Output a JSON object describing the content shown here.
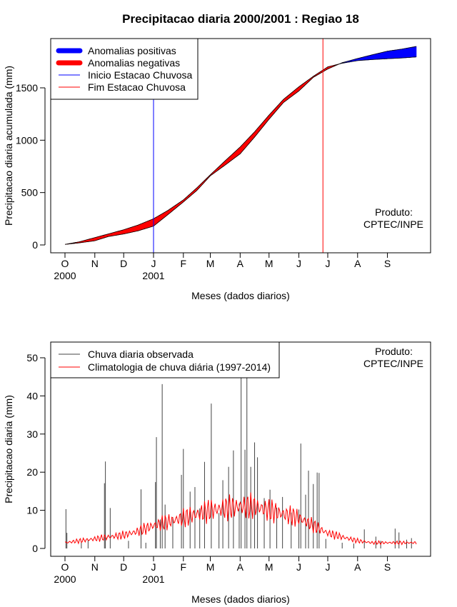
{
  "chart_data": [
    {
      "type": "area",
      "title": "Precipitacao diaria 2000/2001 : Regiao 18",
      "xlabel": "Meses (dados diarios)",
      "ylabel": "Precipitacao diaria acumulada (mm)",
      "ylim": [
        0,
        1900
      ],
      "yticks": [
        0,
        500,
        1000,
        1500
      ],
      "xlim_days": [
        0,
        365
      ],
      "month_ticks": [
        {
          "label": "O",
          "day": 0,
          "year": "2000"
        },
        {
          "label": "N",
          "day": 31,
          "year": ""
        },
        {
          "label": "D",
          "day": 61,
          "year": ""
        },
        {
          "label": "J",
          "day": 92,
          "year": "2001"
        },
        {
          "label": "F",
          "day": 123,
          "year": ""
        },
        {
          "label": "M",
          "day": 151,
          "year": ""
        },
        {
          "label": "A",
          "day": 182,
          "year": ""
        },
        {
          "label": "M",
          "day": 212,
          "year": ""
        },
        {
          "label": "J",
          "day": 243,
          "year": ""
        },
        {
          "label": "J",
          "day": 273,
          "year": ""
        },
        {
          "label": "A",
          "day": 304,
          "year": ""
        },
        {
          "label": "S",
          "day": 335,
          "year": ""
        }
      ],
      "legend": [
        {
          "label": "Anomalias positivas",
          "color": "#0000ff",
          "style": "thick"
        },
        {
          "label": "Anomalias negativas",
          "color": "#ff0000",
          "style": "thick"
        },
        {
          "label": "Inicio Estacao Chuvosa",
          "color": "#0000ff",
          "style": "thin"
        },
        {
          "label": "Fim Estacao Chuvosa",
          "color": "#ff0000",
          "style": "thin"
        }
      ],
      "rainy_season_start_day": 92,
      "rainy_season_end_day": 268,
      "product_label": [
        "Produto:",
        "CPTEC/INPE"
      ],
      "days": [
        0,
        15,
        31,
        45,
        61,
        76,
        92,
        107,
        123,
        137,
        151,
        166,
        182,
        197,
        212,
        227,
        243,
        258,
        273,
        288,
        304,
        319,
        335,
        350,
        365
      ],
      "climatology": [
        5,
        30,
        70,
        105,
        145,
        190,
        250,
        330,
        430,
        545,
        670,
        800,
        935,
        1080,
        1240,
        1390,
        1510,
        1610,
        1700,
        1735,
        1760,
        1770,
        1778,
        1785,
        1795
      ],
      "observed": [
        5,
        20,
        40,
        80,
        105,
        135,
        180,
        290,
        410,
        520,
        660,
        760,
        870,
        1030,
        1200,
        1360,
        1470,
        1600,
        1680,
        1740,
        1780,
        1815,
        1850,
        1870,
        1895
      ]
    },
    {
      "type": "bar",
      "xlabel": "Meses (dados diarios)",
      "ylabel": "Precipitacao diaria (mm)",
      "ylim": [
        0,
        50
      ],
      "yticks": [
        0,
        10,
        20,
        30,
        40,
        50
      ],
      "legend": [
        {
          "label": "Chuva diaria observada",
          "color": "#444444"
        },
        {
          "label": "Climatologia de chuva diária (1997-2014)",
          "color": "#ff0000"
        }
      ],
      "product_label": [
        "Produto:",
        "CPTEC/INPE"
      ],
      "clim_days": [
        0,
        15,
        31,
        45,
        61,
        76,
        92,
        107,
        123,
        137,
        151,
        166,
        182,
        197,
        212,
        227,
        243,
        258,
        273,
        288,
        304,
        319,
        335,
        350,
        365
      ],
      "clim_values": [
        1.5,
        2,
        2.5,
        3,
        3.5,
        4.5,
        6,
        7,
        8,
        9,
        10,
        10.5,
        11,
        11,
        10,
        9,
        8,
        6,
        4,
        3,
        2,
        1.5,
        1.5,
        1.5,
        1.5
      ],
      "observed_peaks": [
        {
          "day": 1,
          "value": 10.3
        },
        {
          "day": 2,
          "value": 4.1
        },
        {
          "day": 17,
          "value": 1.5
        },
        {
          "day": 24,
          "value": 2.2
        },
        {
          "day": 41,
          "value": 17.1
        },
        {
          "day": 42,
          "value": 22.8
        },
        {
          "day": 47,
          "value": 10.6
        },
        {
          "day": 66,
          "value": 2.0
        },
        {
          "day": 79,
          "value": 15.5
        },
        {
          "day": 84,
          "value": 1.5
        },
        {
          "day": 94,
          "value": 17.4
        },
        {
          "day": 95,
          "value": 29.2
        },
        {
          "day": 99,
          "value": 7.6
        },
        {
          "day": 101,
          "value": 43.1
        },
        {
          "day": 104,
          "value": 11.5
        },
        {
          "day": 112,
          "value": 8.2
        },
        {
          "day": 121,
          "value": 19.3
        },
        {
          "day": 123,
          "value": 26.1
        },
        {
          "day": 130,
          "value": 14.9
        },
        {
          "day": 135,
          "value": 16.1
        },
        {
          "day": 140,
          "value": 10.5
        },
        {
          "day": 145,
          "value": 22.7
        },
        {
          "day": 152,
          "value": 38.0
        },
        {
          "day": 160,
          "value": 9.3
        },
        {
          "day": 164,
          "value": 17.9
        },
        {
          "day": 170,
          "value": 21.4
        },
        {
          "day": 175,
          "value": 25.7
        },
        {
          "day": 181,
          "value": 11.8
        },
        {
          "day": 183,
          "value": 49.5
        },
        {
          "day": 187,
          "value": 25.9
        },
        {
          "day": 189,
          "value": 50.0
        },
        {
          "day": 193,
          "value": 21.4
        },
        {
          "day": 197,
          "value": 27.8
        },
        {
          "day": 200,
          "value": 23.9
        },
        {
          "day": 207,
          "value": 13.2
        },
        {
          "day": 213,
          "value": 15.4
        },
        {
          "day": 220,
          "value": 10.7
        },
        {
          "day": 226,
          "value": 13.5
        },
        {
          "day": 235,
          "value": 9.4
        },
        {
          "day": 243,
          "value": 10.2
        },
        {
          "day": 245,
          "value": 27.5
        },
        {
          "day": 250,
          "value": 14.1
        },
        {
          "day": 253,
          "value": 20.4
        },
        {
          "day": 258,
          "value": 16.9
        },
        {
          "day": 262,
          "value": 19.9
        },
        {
          "day": 264,
          "value": 19.8
        },
        {
          "day": 271,
          "value": 2.5
        },
        {
          "day": 288,
          "value": 1.5
        },
        {
          "day": 300,
          "value": 1.3
        },
        {
          "day": 311,
          "value": 5.0
        },
        {
          "day": 323,
          "value": 3.1
        },
        {
          "day": 328,
          "value": 2.0
        },
        {
          "day": 343,
          "value": 5.2
        },
        {
          "day": 347,
          "value": 4.2
        },
        {
          "day": 355,
          "value": 2.3
        },
        {
          "day": 360,
          "value": 2.7
        }
      ]
    }
  ]
}
